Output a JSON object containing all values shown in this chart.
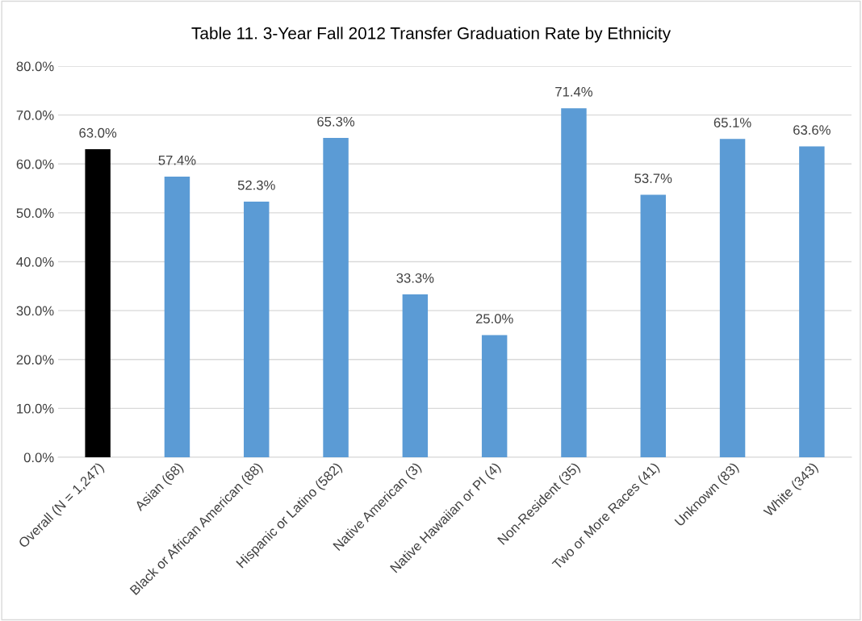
{
  "chart_data": {
    "type": "bar",
    "title": "Table 11. 3-Year Fall 2012 Transfer Graduation Rate by Ethnicity",
    "categories": [
      "Overall (N = 1,247)",
      "Asian (68)",
      "Black or African American (88)",
      "Hispanic or Latino (582)",
      "Native American (3)",
      "Native Hawaiian or PI (4)",
      "Non-Resident (35)",
      "Two or More Races (41)",
      "Unknown (83)",
      "White (343)"
    ],
    "values": [
      63.0,
      57.4,
      52.3,
      65.3,
      33.3,
      25.0,
      71.4,
      53.7,
      65.1,
      63.6
    ],
    "value_labels": [
      "63.0%",
      "57.4%",
      "52.3%",
      "65.3%",
      "33.3%",
      "25.0%",
      "71.4%",
      "53.7%",
      "65.1%",
      "63.6%"
    ],
    "colors": [
      "#000000",
      "#5b9bd5",
      "#5b9bd5",
      "#5b9bd5",
      "#5b9bd5",
      "#5b9bd5",
      "#5b9bd5",
      "#5b9bd5",
      "#5b9bd5",
      "#5b9bd5"
    ],
    "ylim": [
      0,
      80
    ],
    "yticks": [
      {
        "value": 0,
        "label": "0.0%"
      },
      {
        "value": 10,
        "label": "10.0%"
      },
      {
        "value": 20,
        "label": "20.0%"
      },
      {
        "value": 30,
        "label": "30.0%"
      },
      {
        "value": 40,
        "label": "40.0%"
      },
      {
        "value": 50,
        "label": "50.0%"
      },
      {
        "value": 60,
        "label": "60.0%"
      },
      {
        "value": 70,
        "label": "70.0%"
      },
      {
        "value": 80,
        "label": "80.0%"
      }
    ],
    "grid": "y"
  }
}
